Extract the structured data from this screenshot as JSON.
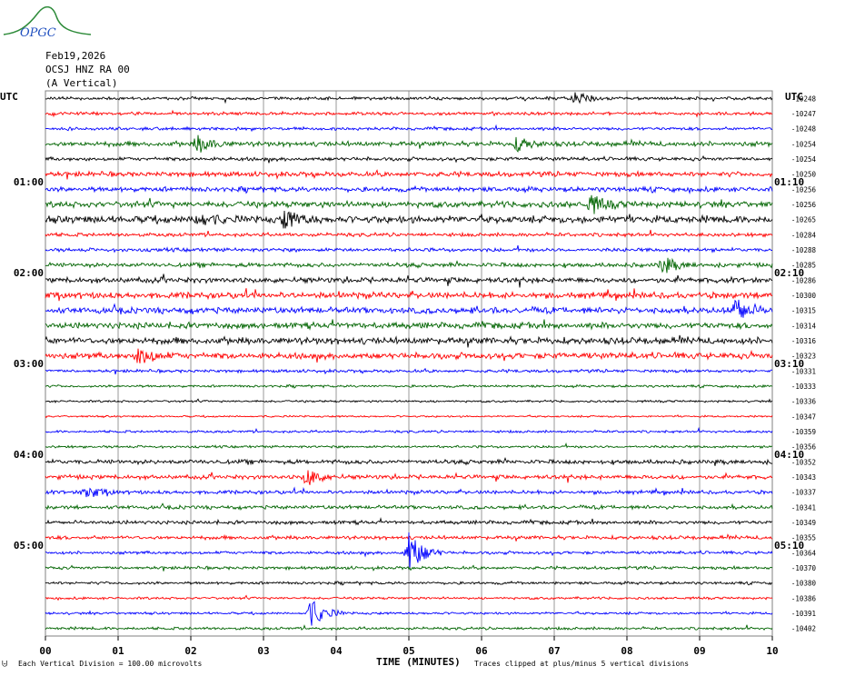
{
  "logo": {
    "text": "OPGC"
  },
  "header": {
    "date": "Feb19,2026",
    "station": "OCSJ HNZ RA 00",
    "component": "(A Vertical)"
  },
  "left_utc_label": "UTC",
  "right_utc_label": "UTC",
  "footer": {
    "scale_note": "Each Vertical Division =  100.00 microvolts",
    "clip_note": "Traces clipped at plus/minus 5 vertical divisions"
  },
  "colors": {
    "trace_cycle": [
      "#000000",
      "#ff0000",
      "#0000ff",
      "#006400"
    ],
    "grid": "#808080"
  },
  "chart_data": {
    "type": "line",
    "title": "",
    "xlabel": "TIME (MINUTES)",
    "ylabel": "",
    "xlim": [
      0,
      10
    ],
    "x_ticks": [
      "00",
      "01",
      "02",
      "03",
      "04",
      "05",
      "06",
      "07",
      "08",
      "09",
      "10"
    ],
    "traces_per_hour": 6,
    "left_time_labels": [
      {
        "row": 6,
        "label": "01:00"
      },
      {
        "row": 12,
        "label": "02:00"
      },
      {
        "row": 18,
        "label": "03:00"
      },
      {
        "row": 24,
        "label": "04:00"
      },
      {
        "row": 30,
        "label": "05:00"
      }
    ],
    "right_time_labels": [
      {
        "row": 6,
        "label": "01:10"
      },
      {
        "row": 12,
        "label": "02:10"
      },
      {
        "row": 18,
        "label": "03:10"
      },
      {
        "row": 24,
        "label": "04:10"
      },
      {
        "row": 30,
        "label": "05:10"
      }
    ],
    "trace_offsets": [
      "-10248",
      "-10247",
      "-10248",
      "-10254",
      "-10254",
      "-10250",
      "-10256",
      "-10256",
      "-10265",
      "-10284",
      "-10288",
      "-10285",
      "-10286",
      "-10300",
      "-10315",
      "-10314",
      "-10316",
      "-10323",
      "-10331",
      "-10333",
      "-10336",
      "-10347",
      "-10359",
      "-10356",
      "-10352",
      "-10343",
      "-10337",
      "-10341",
      "-10349",
      "-10355",
      "-10364",
      "-10370",
      "-10380",
      "-10386",
      "-10391",
      "-10402"
    ],
    "trace_activity": [
      1.0,
      1.0,
      1.0,
      1.6,
      1.2,
      1.6,
      1.6,
      2.0,
      2.4,
      1.2,
      1.2,
      1.4,
      1.8,
      2.0,
      2.0,
      2.0,
      2.2,
      2.0,
      1.0,
      0.8,
      0.7,
      0.6,
      0.8,
      0.8,
      1.4,
      1.4,
      1.2,
      1.2,
      1.2,
      1.2,
      1.0,
      1.0,
      0.9,
      0.8,
      0.8,
      0.9
    ],
    "events": [
      {
        "row": 0,
        "minute": 7.3,
        "amp": 2.0
      },
      {
        "row": 3,
        "minute": 2.1,
        "amp": 2.2
      },
      {
        "row": 3,
        "minute": 6.5,
        "amp": 1.8
      },
      {
        "row": 7,
        "minute": 7.5,
        "amp": 2.5
      },
      {
        "row": 8,
        "minute": 2.1,
        "amp": 2.0
      },
      {
        "row": 8,
        "minute": 3.3,
        "amp": 2.4
      },
      {
        "row": 11,
        "minute": 8.5,
        "amp": 2.2
      },
      {
        "row": 14,
        "minute": 9.5,
        "amp": 3.5
      },
      {
        "row": 17,
        "minute": 1.3,
        "amp": 2.4
      },
      {
        "row": 25,
        "minute": 3.6,
        "amp": 2.4
      },
      {
        "row": 26,
        "minute": 0.55,
        "amp": 2.0
      },
      {
        "row": 30,
        "minute": 5.0,
        "amp": 6.0
      },
      {
        "row": 34,
        "minute": 3.65,
        "amp": 4.0
      }
    ]
  }
}
